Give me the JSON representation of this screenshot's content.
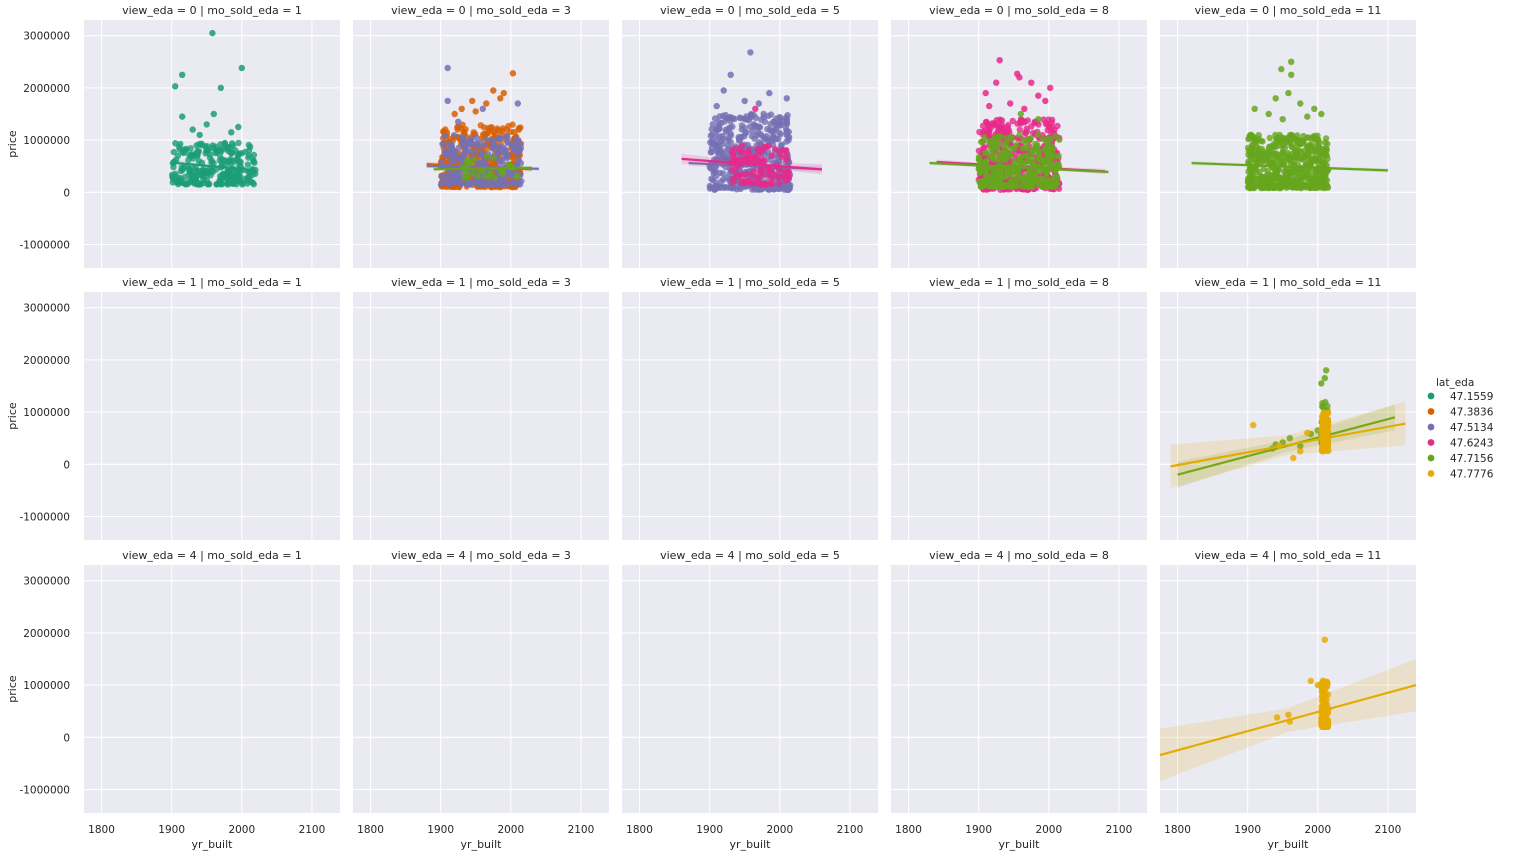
{
  "chart_data": {
    "type": "scatter",
    "facet": {
      "row_var": "view_eda",
      "col_var": "mo_sold_eda",
      "rows": [
        0,
        1,
        4
      ],
      "cols": [
        1,
        3,
        5,
        8,
        11
      ],
      "titles": [
        [
          "view_eda = 0 | mo_sold_eda = 1",
          "view_eda = 0 | mo_sold_eda = 3",
          "view_eda = 0 | mo_sold_eda = 5",
          "view_eda = 0 | mo_sold_eda = 8",
          "view_eda = 0 | mo_sold_eda = 11"
        ],
        [
          "view_eda = 1 | mo_sold_eda = 1",
          "view_eda = 1 | mo_sold_eda = 3",
          "view_eda = 1 | mo_sold_eda = 5",
          "view_eda = 1 | mo_sold_eda = 8",
          "view_eda = 1 | mo_sold_eda = 11"
        ],
        [
          "view_eda = 4 | mo_sold_eda = 1",
          "view_eda = 4 | mo_sold_eda = 3",
          "view_eda = 4 | mo_sold_eda = 5",
          "view_eda = 4 | mo_sold_eda = 8",
          "view_eda = 4 | mo_sold_eda = 11"
        ]
      ]
    },
    "xlabel": "yr_built",
    "ylabel": "price",
    "xlim": [
      1775,
      2140
    ],
    "ylim": [
      -1450000,
      3300000
    ],
    "xticks": [
      1800,
      1900,
      2000,
      2100
    ],
    "yticks": [
      -1000000,
      0,
      1000000,
      2000000,
      3000000
    ],
    "grid": true,
    "legend": {
      "title": "lat_eda",
      "placement": "right",
      "entries": [
        {
          "label": "47.1559",
          "color": "#1b9e77"
        },
        {
          "label": "47.3836",
          "color": "#d95f02"
        },
        {
          "label": "47.5134",
          "color": "#7570b3"
        },
        {
          "label": "47.6243",
          "color": "#e7298a"
        },
        {
          "label": "47.7156",
          "color": "#66a61e"
        },
        {
          "label": "47.7776",
          "color": "#e6ab02"
        }
      ]
    },
    "panels": [
      {
        "row": 0,
        "col": 0,
        "series": [
          {
            "lat": "47.1559",
            "color": "#1b9e77",
            "cluster": {
              "x": [
                1900,
                2020
              ],
              "y": [
                150000,
                950000
              ],
              "n": 260
            },
            "points": [
              [
                1958,
                3050000
              ],
              [
                1915,
                2250000
              ],
              [
                1905,
                2030000
              ],
              [
                2000,
                2380000
              ],
              [
                1970,
                2000000
              ],
              [
                1915,
                1450000
              ],
              [
                1960,
                1500000
              ],
              [
                1950,
                1300000
              ],
              [
                1930,
                1200000
              ],
              [
                1985,
                1150000
              ],
              [
                1995,
                1250000
              ],
              [
                1940,
                1100000
              ]
            ],
            "fit": {
              "x": [
                1900,
                2020
              ],
              "y": [
                570000,
                420000
              ]
            },
            "band": 60000
          }
        ]
      },
      {
        "row": 0,
        "col": 1,
        "series": [
          {
            "lat": "47.3836",
            "color": "#d95f02",
            "cluster": {
              "x": [
                1900,
                2015
              ],
              "y": [
                100000,
                1300000
              ],
              "n": 420
            },
            "points": [
              [
                2003,
                2280000
              ],
              [
                1975,
                1950000
              ],
              [
                1990,
                1900000
              ],
              [
                1965,
                1700000
              ],
              [
                1930,
                1600000
              ],
              [
                1945,
                1750000
              ],
              [
                1985,
                1800000
              ],
              [
                1920,
                1500000
              ],
              [
                1950,
                1550000
              ]
            ],
            "fit": {
              "x": [
                1880,
                2030
              ],
              "y": [
                540000,
                440000
              ]
            },
            "band": 50000
          },
          {
            "lat": "47.5134",
            "color": "#7570b3",
            "cluster": {
              "x": [
                1900,
                2015
              ],
              "y": [
                150000,
                1100000
              ],
              "n": 260
            },
            "points": [
              [
                1910,
                2380000
              ],
              [
                1910,
                1750000
              ],
              [
                2010,
                1700000
              ],
              [
                1960,
                1600000
              ],
              [
                1925,
                1350000
              ]
            ],
            "fit": {
              "x": [
                1880,
                2040
              ],
              "y": [
                500000,
                450000
              ]
            },
            "band": 40000
          },
          {
            "lat": "47.7156",
            "color": "#66a61e",
            "cluster": {
              "x": [
                1930,
                2010
              ],
              "y": [
                250000,
                700000
              ],
              "n": 30
            },
            "points": [],
            "fit": {
              "x": [
                1890,
                2030
              ],
              "y": [
                440000,
                470000
              ]
            },
            "band": 30000
          }
        ]
      },
      {
        "row": 0,
        "col": 2,
        "series": [
          {
            "lat": "47.5134",
            "color": "#7570b3",
            "cluster": {
              "x": [
                1900,
                2015
              ],
              "y": [
                50000,
                1500000
              ],
              "n": 460
            },
            "points": [
              [
                1958,
                2680000
              ],
              [
                1930,
                2250000
              ],
              [
                1920,
                1950000
              ],
              [
                1985,
                1900000
              ],
              [
                2010,
                1800000
              ],
              [
                1950,
                1750000
              ],
              [
                1970,
                1700000
              ],
              [
                1910,
                1650000
              ]
            ],
            "fit": {
              "x": [
                1870,
                2060
              ],
              "y": [
                560000,
                440000
              ]
            },
            "band": 60000
          },
          {
            "lat": "47.6243",
            "color": "#e7298a",
            "cluster": {
              "x": [
                1930,
                2015
              ],
              "y": [
                150000,
                900000
              ],
              "n": 100
            },
            "points": [
              [
                1965,
                1600000
              ]
            ],
            "fit": {
              "x": [
                1860,
                2060
              ],
              "y": [
                640000,
                440000
              ]
            },
            "band": 100000
          }
        ]
      },
      {
        "row": 0,
        "col": 3,
        "series": [
          {
            "lat": "47.6243",
            "color": "#e7298a",
            "cluster": {
              "x": [
                1900,
                2015
              ],
              "y": [
                50000,
                1400000
              ],
              "n": 420
            },
            "points": [
              [
                1930,
                2530000
              ],
              [
                1955,
                2270000
              ],
              [
                1958,
                2200000
              ],
              [
                1925,
                2100000
              ],
              [
                1975,
                2100000
              ],
              [
                2002,
                2000000
              ],
              [
                1910,
                1900000
              ],
              [
                1985,
                1850000
              ],
              [
                1945,
                1700000
              ],
              [
                1965,
                1600000
              ],
              [
                1995,
                1750000
              ],
              [
                1915,
                1650000
              ]
            ],
            "fit": {
              "x": [
                1840,
                2080
              ],
              "y": [
                580000,
                400000
              ]
            },
            "band": 50000
          },
          {
            "lat": "47.7156",
            "color": "#66a61e",
            "cluster": {
              "x": [
                1900,
                2015
              ],
              "y": [
                100000,
                1100000
              ],
              "n": 300
            },
            "points": [
              [
                1960,
                1500000
              ],
              [
                1985,
                1400000
              ]
            ],
            "fit": {
              "x": [
                1830,
                2085
              ],
              "y": [
                560000,
                390000
              ]
            },
            "band": 40000
          }
        ]
      },
      {
        "row": 0,
        "col": 4,
        "series": [
          {
            "lat": "47.7156",
            "color": "#66a61e",
            "cluster": {
              "x": [
                1900,
                2015
              ],
              "y": [
                80000,
                1100000
              ],
              "n": 560
            },
            "points": [
              [
                1962,
                2500000
              ],
              [
                1948,
                2360000
              ],
              [
                1962,
                2250000
              ],
              [
                1958,
                1900000
              ],
              [
                1940,
                1800000
              ],
              [
                1975,
                1700000
              ],
              [
                1910,
                1600000
              ],
              [
                1995,
                1600000
              ],
              [
                1930,
                1500000
              ],
              [
                1985,
                1450000
              ],
              [
                1950,
                1400000
              ],
              [
                2005,
                1500000
              ]
            ],
            "fit": {
              "x": [
                1820,
                2100
              ],
              "y": [
                560000,
                420000
              ]
            },
            "band": 40000
          }
        ]
      },
      {
        "row": 1,
        "col": 4,
        "series": [
          {
            "lat": "47.7156",
            "color": "#66a61e",
            "cluster": {
              "x": [
                2005,
                2015
              ],
              "y": [
                300000,
                1200000
              ],
              "n": 50
            },
            "points": [
              [
                2012,
                1800000
              ],
              [
                2010,
                1650000
              ],
              [
                2005,
                1550000
              ],
              [
                1960,
                500000
              ],
              [
                1950,
                420000
              ],
              [
                1940,
                380000
              ],
              [
                1935,
                300000
              ],
              [
                1975,
                350000
              ],
              [
                2000,
                650000
              ],
              [
                1990,
                580000
              ]
            ],
            "fit": {
              "x": [
                1800,
                2110
              ],
              "y": [
                -200000,
                900000
              ]
            },
            "band": 250000
          },
          {
            "lat": "47.7776",
            "color": "#e6ab02",
            "cluster": {
              "x": [
                2005,
                2015
              ],
              "y": [
                250000,
                1000000
              ],
              "n": 90
            },
            "points": [
              [
                1908,
                750000
              ],
              [
                1965,
                120000
              ],
              [
                1975,
                250000
              ],
              [
                1985,
                600000
              ],
              [
                1945,
                350000
              ]
            ],
            "fit": {
              "x": [
                1790,
                2125
              ],
              "y": [
                -40000,
                780000
              ]
            },
            "band": 420000
          }
        ]
      },
      {
        "row": 2,
        "col": 4,
        "series": [
          {
            "lat": "47.7776",
            "color": "#e6ab02",
            "cluster": {
              "x": [
                2005,
                2015
              ],
              "y": [
                200000,
                1100000
              ],
              "n": 120
            },
            "points": [
              [
                2010,
                1870000
              ],
              [
                1942,
                380000
              ],
              [
                1958,
                430000
              ],
              [
                1960,
                300000
              ],
              [
                1990,
                1080000
              ],
              [
                2000,
                1000000
              ]
            ],
            "fit": {
              "x": [
                1775,
                2140
              ],
              "y": [
                -340000,
                1000000
              ]
            },
            "band": 500000
          }
        ]
      }
    ]
  }
}
